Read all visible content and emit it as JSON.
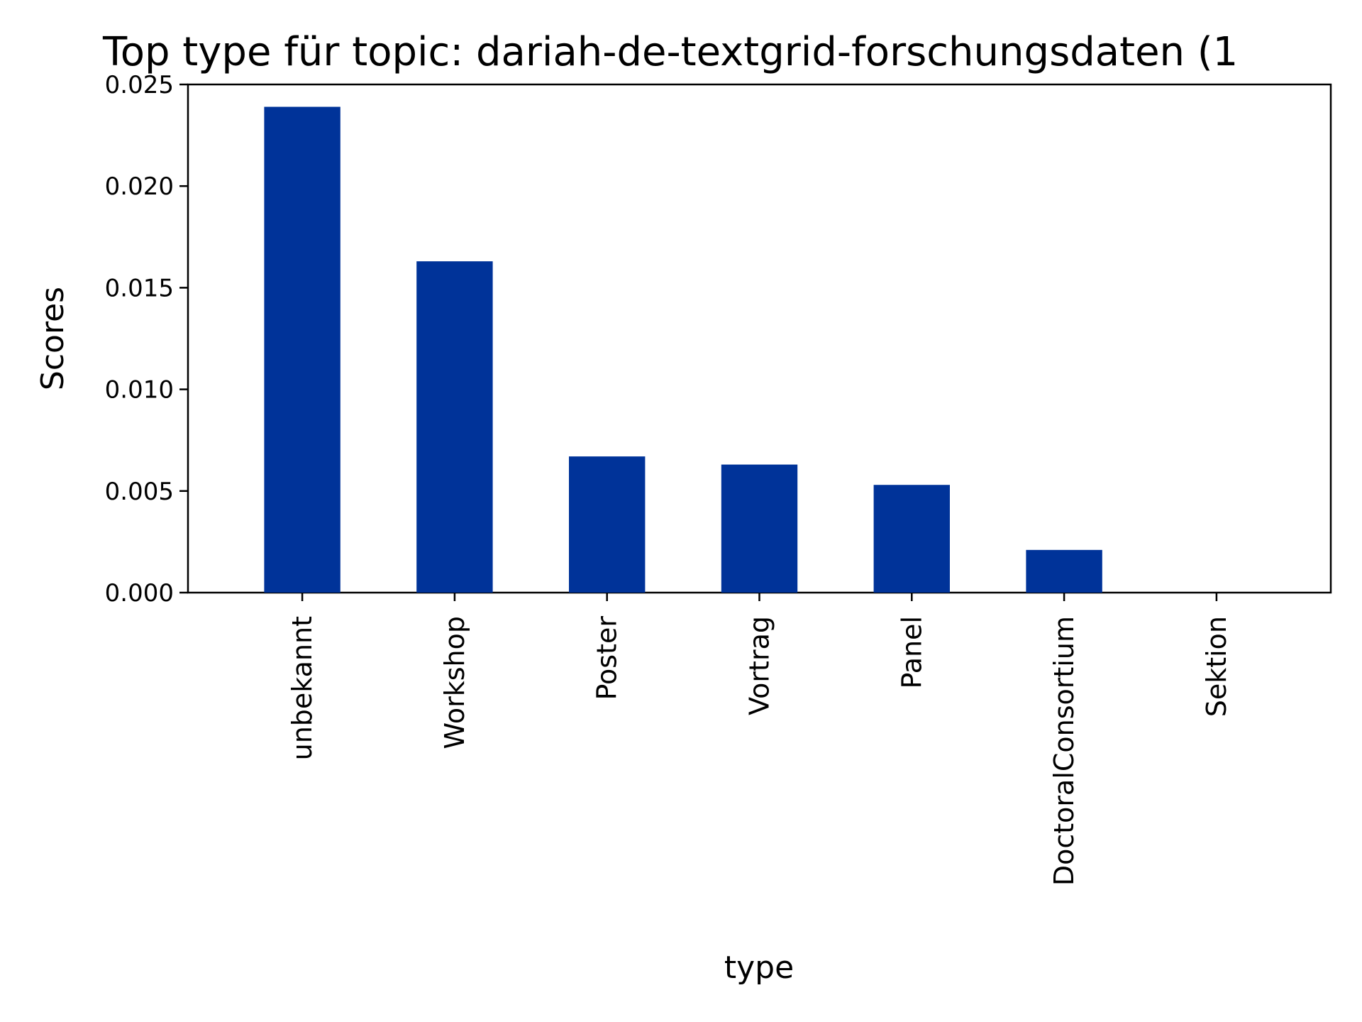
{
  "chart_data": {
    "type": "bar",
    "title": "Top type für topic: dariah-de-textgrid-forschungsdaten (1",
    "xlabel": "type",
    "ylabel": "Scores",
    "categories": [
      "unbekannt",
      "Workshop",
      "Poster",
      "Vortrag",
      "Panel",
      "DoctoralConsortium",
      "Sektion"
    ],
    "values": [
      0.0239,
      0.0163,
      0.0067,
      0.0063,
      0.0053,
      0.0021,
      0.0
    ],
    "ylim": [
      0,
      0.025
    ],
    "yticks": [
      "0.000",
      "0.005",
      "0.010",
      "0.015",
      "0.020",
      "0.025"
    ],
    "ytick_values": [
      0,
      0.005,
      0.01,
      0.015,
      0.02,
      0.025
    ],
    "grid": false,
    "legend": "none",
    "bar_color": "#003399"
  }
}
